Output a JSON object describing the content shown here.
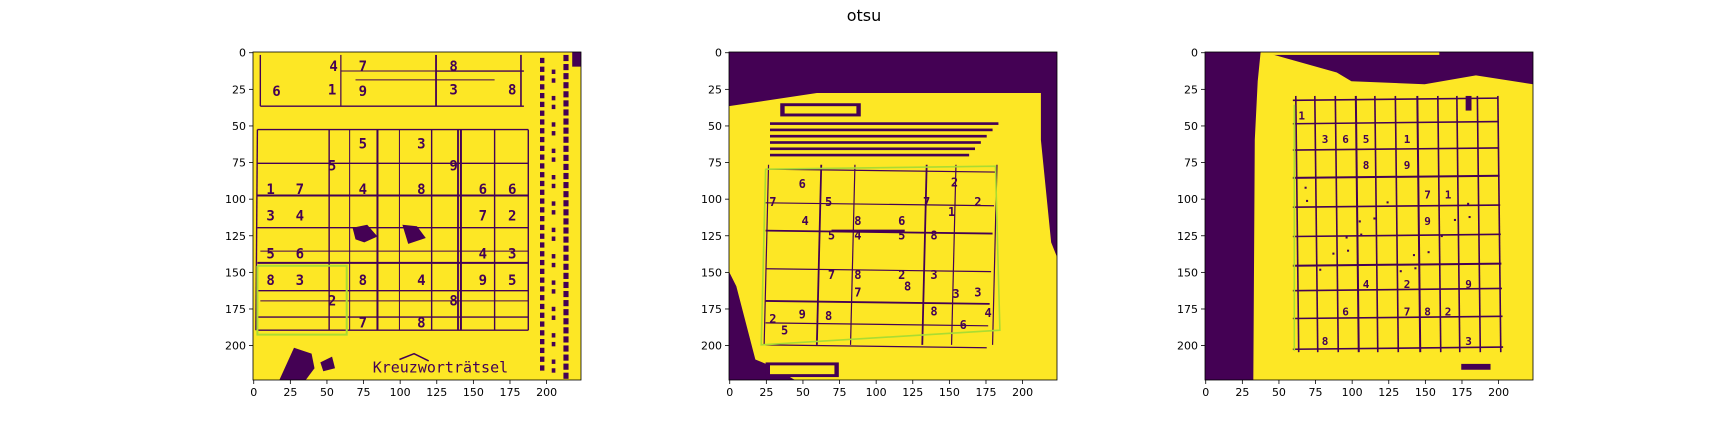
{
  "figure": {
    "suptitle": "otsu"
  },
  "colors": {
    "foreground": "#fde725",
    "background": "#440154",
    "overlay": "#aadc32"
  },
  "chart_data": [
    {
      "type": "heatmap",
      "name": "panel-1",
      "xlim": [
        0,
        224
      ],
      "ylim": [
        224,
        0
      ],
      "xticks": [
        0,
        25,
        50,
        75,
        100,
        125,
        150,
        175,
        200
      ],
      "yticks": [
        0,
        25,
        50,
        75,
        100,
        125,
        150,
        175,
        200
      ],
      "printed_text": [
        "4",
        "7",
        "8",
        "6",
        "1",
        "9",
        "3",
        "8",
        "5",
        "3",
        "5",
        "9",
        "1",
        "7",
        "4",
        "8",
        "6",
        "6",
        "3",
        "4",
        "7",
        "2",
        "5",
        "6",
        "4",
        "3",
        "8",
        "3",
        "8",
        "4",
        "9",
        "5",
        "2",
        "8",
        "7",
        "8",
        "Kreuzworträtsel"
      ]
    },
    {
      "type": "heatmap",
      "name": "panel-2",
      "xlim": [
        0,
        224
      ],
      "ylim": [
        224,
        0
      ],
      "xticks": [
        0,
        25,
        50,
        75,
        100,
        125,
        150,
        175,
        200
      ],
      "yticks": [
        0,
        25,
        50,
        75,
        100,
        125,
        150,
        175,
        200
      ],
      "printed_text": [
        "6",
        "7",
        "5",
        "7",
        "2",
        "4",
        "8",
        "6",
        "5",
        "4",
        "5",
        "8",
        "1",
        "7",
        "8",
        "2",
        "3",
        "9",
        "7",
        "8",
        "2",
        "8",
        "3",
        "3",
        "4",
        "6",
        "8",
        "5",
        "2"
      ]
    },
    {
      "type": "heatmap",
      "name": "panel-3",
      "xlim": [
        0,
        224
      ],
      "ylim": [
        224,
        0
      ],
      "xticks": [
        0,
        25,
        50,
        75,
        100,
        125,
        150,
        175,
        200
      ],
      "yticks": [
        0,
        25,
        50,
        75,
        100,
        125,
        150,
        175,
        200
      ],
      "printed_text": [
        "1",
        "3",
        "6",
        "5",
        "1",
        "8",
        "9",
        "7",
        "1",
        "9",
        "4",
        "2",
        "9",
        "6",
        "7",
        "8",
        "2",
        "8",
        "3"
      ]
    }
  ]
}
